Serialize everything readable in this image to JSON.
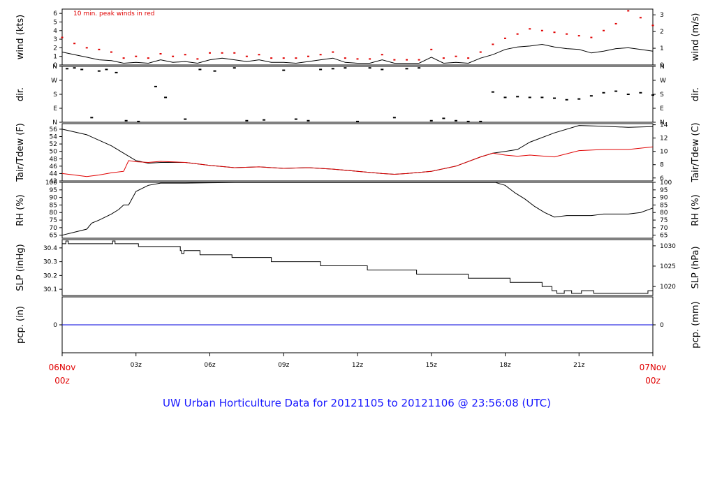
{
  "chart_data": {
    "type": "line",
    "title": "UW Urban Horticulture Data for 20121105  to  20121106 @ 23:56:08  (UTC)",
    "x_axis": {
      "ticks": [
        {
          "h": 0,
          "label": "06Nov",
          "label2": "00z",
          "highlight": true
        },
        {
          "h": 3,
          "label": "03z"
        },
        {
          "h": 6,
          "label": "06z"
        },
        {
          "h": 9,
          "label": "09z"
        },
        {
          "h": 12,
          "label": "12z"
        },
        {
          "h": 15,
          "label": "15z"
        },
        {
          "h": 18,
          "label": "18z"
        },
        {
          "h": 21,
          "label": "21z"
        },
        {
          "h": 24,
          "label": "07Nov",
          "label2": "00z",
          "highlight": true
        }
      ],
      "range_hours": [
        0,
        24
      ]
    },
    "panels": [
      {
        "id": "wind",
        "left_label": "wind (kts)",
        "right_label": "wind (m/s)",
        "annotation": "10 min. peak winds in red",
        "ylim": [
          0,
          6.5
        ],
        "left_ticks": [
          "0",
          "1",
          "2",
          "3",
          "4",
          "5",
          "6"
        ],
        "left_tick_values": [
          0,
          1,
          2,
          3,
          4,
          5,
          6
        ],
        "right_ticks": [
          "0",
          "1",
          "2",
          "3"
        ],
        "right_tick_values": [
          0,
          1.944,
          3.888,
          5.832
        ],
        "series": [
          {
            "name": "",
            "color": "#000000",
            "x": [
              0,
              0.5,
              1,
              1.5,
              2,
              2.5,
              3,
              3.5,
              4,
              4.5,
              5,
              5.5,
              6,
              6.5,
              7,
              7.5,
              8,
              8.5,
              9,
              9.5,
              10,
              10.5,
              11,
              11.5,
              12,
              12.5,
              13,
              13.5,
              14,
              14.5,
              15,
              15.5,
              16,
              16.5,
              17,
              17.5,
              18,
              18.5,
              19,
              19.5,
              20,
              20.5,
              21,
              21.5,
              22,
              22.5,
              23,
              23.5,
              24
            ],
            "y": [
              1.5,
              1.2,
              0.9,
              0.6,
              0.5,
              0.2,
              0.3,
              0.2,
              0.6,
              0.3,
              0.4,
              0.2,
              0.6,
              0.8,
              0.6,
              0.4,
              0.6,
              0.3,
              0.3,
              0.2,
              0.4,
              0.6,
              0.8,
              0.3,
              0.2,
              0.2,
              0.6,
              0.2,
              0.2,
              0.2,
              0.9,
              0.2,
              0.3,
              0.2,
              0.8,
              1.2,
              1.8,
              2.1,
              2.2,
              2.4,
              2.1,
              1.9,
              1.8,
              1.4,
              1.6,
              1.9,
              2.0,
              1.8,
              1.6
            ]
          },
          {
            "name": "",
            "color": "#e00000",
            "x": [
              0,
              0.5,
              1,
              1.5,
              2,
              2.5,
              3,
              3.5,
              4,
              4.5,
              5,
              5.5,
              6,
              6.5,
              7,
              7.5,
              8,
              8.5,
              9,
              9.5,
              10,
              10.5,
              11,
              11.5,
              12,
              12.5,
              13,
              13.5,
              14,
              14.5,
              15,
              15.5,
              16,
              16.5,
              17,
              17.5,
              18,
              18.5,
              19,
              19.5,
              20,
              20.5,
              21,
              21.5,
              22,
              22.5,
              23,
              23.5,
              24
            ],
            "y": [
              3.2,
              2.5,
              2.0,
              1.8,
              1.5,
              0.8,
              1.0,
              0.8,
              1.3,
              1.0,
              1.2,
              0.7,
              1.4,
              1.4,
              1.4,
              1.0,
              1.2,
              0.8,
              0.8,
              0.8,
              1.0,
              1.2,
              1.5,
              0.8,
              0.7,
              0.7,
              1.2,
              0.6,
              0.6,
              0.6,
              1.8,
              0.8,
              1.0,
              0.8,
              1.5,
              2.4,
              3.1,
              3.6,
              4.2,
              4.0,
              3.8,
              3.6,
              3.4,
              3.2,
              4.0,
              4.8,
              6.3,
              5.5,
              4.6
            ]
          }
        ]
      },
      {
        "id": "dir",
        "left_label": "dir.",
        "right_label": "dir.",
        "ylim": [
          0,
          360
        ],
        "left_ticks": [
          "N",
          "E",
          "S",
          "W",
          "N"
        ],
        "left_tick_values": [
          0,
          90,
          180,
          270,
          360
        ],
        "right_ticks": [
          "N",
          "E",
          "S",
          "W",
          "N"
        ],
        "right_tick_values": [
          0,
          90,
          180,
          270,
          360
        ],
        "series": [
          {
            "name": "",
            "color": "#000000",
            "style": "dots",
            "x": [
              0.2,
              0.5,
              0.8,
              1.2,
              1.5,
              1.8,
              2.2,
              2.6,
              3.1,
              3.8,
              4.2,
              5,
              5.6,
              6.2,
              7,
              7.5,
              8.2,
              9,
              9.5,
              10,
              10.5,
              11,
              11.5,
              12,
              12.5,
              13,
              13.5,
              14,
              14.5,
              15,
              15.5,
              16,
              16.5,
              17,
              17.5,
              18,
              18.5,
              19,
              19.5,
              20,
              20.5,
              21,
              21.5,
              22,
              22.5,
              23,
              23.5,
              24
            ],
            "y": [
              345,
              350,
              340,
              30,
              330,
              340,
              320,
              10,
              5,
              230,
              160,
              20,
              340,
              330,
              350,
              10,
              15,
              335,
              20,
              10,
              340,
              345,
              350,
              5,
              350,
              340,
              30,
              345,
              350,
              10,
              25,
              10,
              5,
              5,
              195,
              160,
              165,
              160,
              160,
              155,
              145,
              150,
              170,
              190,
              200,
              180,
              190,
              175
            ]
          }
        ]
      },
      {
        "id": "temp",
        "left_label": "Tair/Tdew (F)",
        "right_label": "Tair/Tdew (C)",
        "ylim": [
          42,
          57.5
        ],
        "left_ticks": [
          "42",
          "44",
          "46",
          "48",
          "50",
          "52",
          "54",
          "56"
        ],
        "left_tick_values": [
          42,
          44,
          46,
          48,
          50,
          52,
          54,
          56
        ],
        "right_ticks": [
          "6",
          "8",
          "10",
          "12",
          "14"
        ],
        "right_tick_values": [
          42.8,
          46.4,
          50,
          53.6,
          57.2
        ],
        "series": [
          {
            "name": "",
            "color": "#000000",
            "x": [
              0,
              1,
              2,
              2.5,
              3,
              3.5,
              4,
              5,
              6,
              7,
              8,
              9,
              10,
              11,
              12,
              13,
              13.5,
              14,
              15,
              16,
              17,
              17.5,
              18,
              18.5,
              19,
              20,
              21,
              22,
              23,
              24
            ],
            "y": [
              56.0,
              54.5,
              51.5,
              49.5,
              47.5,
              46.8,
              47.0,
              47.0,
              46.2,
              45.6,
              45.8,
              45.4,
              45.6,
              45.2,
              44.6,
              44.0,
              43.8,
              44.0,
              44.6,
              46.0,
              48.5,
              49.5,
              50.0,
              50.5,
              52.5,
              55.0,
              57.0,
              56.8,
              56.5,
              56.7
            ]
          },
          {
            "name": "",
            "color": "#e00000",
            "x": [
              0,
              0.5,
              1,
              1.5,
              2,
              2.5,
              2.7,
              3,
              3.5,
              4,
              5,
              6,
              7,
              8,
              9,
              10,
              11,
              12,
              13,
              13.5,
              14,
              15,
              16,
              17,
              17.5,
              18,
              18.5,
              19,
              20,
              21,
              22,
              23,
              24
            ],
            "y": [
              44.0,
              43.6,
              43.2,
              43.6,
              44.2,
              44.6,
              47.5,
              47.2,
              47.0,
              47.3,
              47.0,
              46.2,
              45.6,
              45.8,
              45.4,
              45.6,
              45.2,
              44.6,
              44.0,
              43.8,
              44.0,
              44.6,
              46.0,
              48.5,
              49.5,
              49.0,
              48.7,
              49.0,
              48.5,
              50.2,
              50.5,
              50.5,
              51.2
            ]
          }
        ]
      },
      {
        "id": "rh",
        "left_label": "RH (%)",
        "right_label": "RH (%)",
        "ylim": [
          63,
          100
        ],
        "left_ticks": [
          "65",
          "70",
          "75",
          "80",
          "85",
          "90",
          "95",
          "100"
        ],
        "left_tick_values": [
          65,
          70,
          75,
          80,
          85,
          90,
          95,
          100
        ],
        "right_ticks": [
          "65",
          "70",
          "75",
          "80",
          "85",
          "90",
          "95",
          "100"
        ],
        "right_tick_values": [
          65,
          70,
          75,
          80,
          85,
          90,
          95,
          100
        ],
        "series": [
          {
            "name": "",
            "color": "#000000",
            "x": [
              0,
              0.5,
              1,
              1.2,
              1.5,
              2,
              2.3,
              2.5,
              2.7,
              3,
              3.5,
              4,
              5,
              6,
              7,
              8,
              9,
              10,
              11,
              12,
              13,
              14,
              15,
              16,
              17,
              17.6,
              18,
              18.4,
              18.8,
              19.2,
              19.6,
              20,
              20.5,
              21,
              21.5,
              22,
              22.5,
              23,
              23.5,
              24
            ],
            "y": [
              65,
              67,
              69,
              73,
              75,
              79,
              82,
              85,
              85,
              94,
              98,
              99.5,
              99.5,
              99.7,
              99.9,
              99.9,
              99.9,
              99.9,
              99.9,
              99.9,
              99.9,
              99.9,
              99.9,
              99.9,
              99.9,
              99.9,
              98,
              93,
              89,
              84,
              80,
              77,
              78,
              78,
              78,
              79,
              79,
              79,
              80,
              83
            ]
          }
        ]
      },
      {
        "id": "slp",
        "left_label": "SLP (inHg)",
        "right_label": "SLP (hPa)",
        "ylim": [
          30.055,
          30.46
        ],
        "left_ticks": [
          "30.1",
          "30.2",
          "30.3",
          "30.4"
        ],
        "left_tick_values": [
          30.1,
          30.2,
          30.3,
          30.4
        ],
        "right_ticks": [
          "1020",
          "1025",
          "1030"
        ],
        "right_tick_values": [
          30.12,
          30.268,
          30.415
        ],
        "series": [
          {
            "name": "",
            "color": "#000000",
            "style": "step",
            "x": [
              0,
              0.15,
              0.25,
              2,
              2.05,
              2.15,
              3.1,
              4.8,
              4.85,
              4.95,
              5.6,
              6.9,
              8.5,
              10.5,
              12.4,
              14.4,
              16.5,
              18.2,
              19.5,
              19.9,
              20.1,
              20.4,
              20.7,
              21.1,
              21.6,
              23.8,
              24
            ],
            "y": [
              30.43,
              30.45,
              30.43,
              30.43,
              30.45,
              30.43,
              30.41,
              30.38,
              30.36,
              30.38,
              30.35,
              30.33,
              30.3,
              30.27,
              30.24,
              30.21,
              30.18,
              30.15,
              30.12,
              30.09,
              30.07,
              30.09,
              30.07,
              30.09,
              30.07,
              30.09,
              30.09
            ]
          }
        ]
      },
      {
        "id": "pcp",
        "left_label": "pcp. (in)",
        "right_label": "pcp. (mm)",
        "ylim": [
          -1,
          1
        ],
        "left_ticks": [
          "0"
        ],
        "left_tick_values": [
          0
        ],
        "right_ticks": [
          "0"
        ],
        "right_tick_values": [
          0
        ],
        "series": [
          {
            "name": "",
            "color": "#0000dd",
            "x": [
              0,
              24
            ],
            "y": [
              0,
              0
            ]
          }
        ]
      }
    ]
  }
}
